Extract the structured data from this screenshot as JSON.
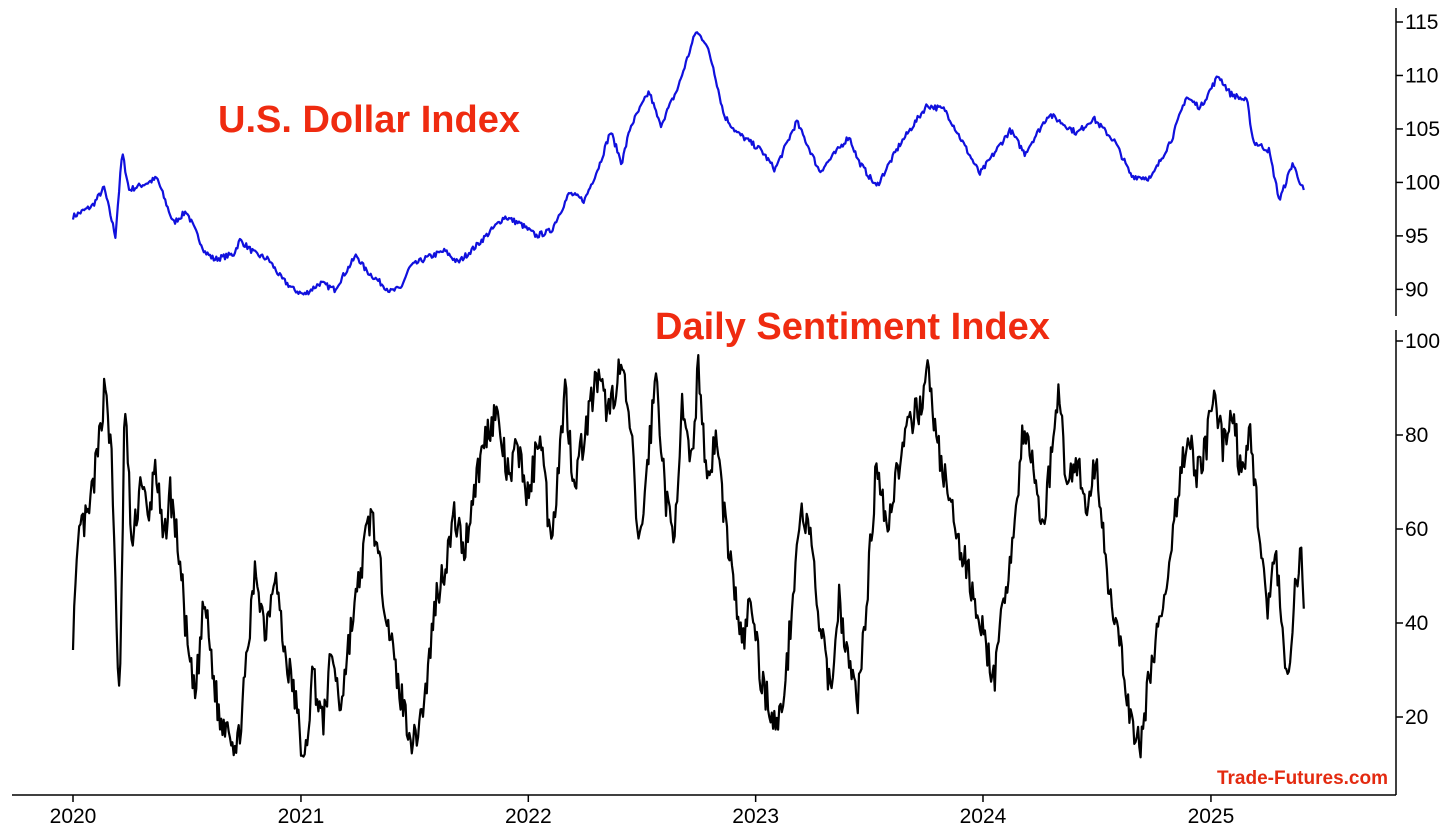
{
  "colors": {
    "title": "#ef2b10",
    "usd_line": "#1010dd",
    "dsi_line": "#000000",
    "watermark": "#e32a10"
  },
  "watermark": "Trade-Futures.com",
  "chart_data": [
    {
      "type": "line",
      "title": "U.S. Dollar Index",
      "xlim": [
        "2020-01-01",
        "2025-08-01"
      ],
      "ylim": [
        88.2,
        115.2
      ],
      "yticks": [
        90,
        95,
        100,
        105,
        110,
        115
      ],
      "y_axis_side": "right",
      "grid": false,
      "series": [
        {
          "color": "#1010dd",
          "points": [
            [
              "2020-01-01",
              96.8
            ],
            [
              "2020-02-01",
              97.8
            ],
            [
              "2020-02-20",
              99.5
            ],
            [
              "2020-03-09",
              95.0
            ],
            [
              "2020-03-20",
              102.8
            ],
            [
              "2020-03-31",
              99.3
            ],
            [
              "2020-05-01",
              100.0
            ],
            [
              "2020-05-15",
              100.4
            ],
            [
              "2020-06-10",
              96.2
            ],
            [
              "2020-07-01",
              97.3
            ],
            [
              "2020-07-31",
              93.5
            ],
            [
              "2020-08-15",
              92.8
            ],
            [
              "2020-09-15",
              93.3
            ],
            [
              "2020-09-25",
              94.6
            ],
            [
              "2020-10-20",
              93.3
            ],
            [
              "2020-11-10",
              92.8
            ],
            [
              "2020-12-01",
              91.0
            ],
            [
              "2020-12-20",
              90.0
            ],
            [
              "2021-01-06",
              89.5
            ],
            [
              "2021-02-01",
              90.6
            ],
            [
              "2021-02-24",
              90.0
            ],
            [
              "2021-03-31",
              93.2
            ],
            [
              "2021-04-15",
              91.8
            ],
            [
              "2021-05-25",
              89.8
            ],
            [
              "2021-06-10",
              90.1
            ],
            [
              "2021-06-25",
              92.1
            ],
            [
              "2021-07-20",
              92.9
            ],
            [
              "2021-08-20",
              93.6
            ],
            [
              "2021-09-10",
              92.5
            ],
            [
              "2021-10-10",
              94.1
            ],
            [
              "2021-11-24",
              96.8
            ],
            [
              "2021-12-20",
              96.1
            ],
            [
              "2022-01-14",
              95.0
            ],
            [
              "2022-02-07",
              95.5
            ],
            [
              "2022-03-08",
              99.0
            ],
            [
              "2022-04-01",
              98.3
            ],
            [
              "2022-04-25",
              101.6
            ],
            [
              "2022-05-13",
              104.8
            ],
            [
              "2022-05-31",
              101.8
            ],
            [
              "2022-06-14",
              105.2
            ],
            [
              "2022-07-14",
              108.5
            ],
            [
              "2022-08-01",
              105.3
            ],
            [
              "2022-08-29",
              108.8
            ],
            [
              "2022-09-27",
              114.1
            ],
            [
              "2022-10-12",
              113.2
            ],
            [
              "2022-10-25",
              110.8
            ],
            [
              "2022-11-11",
              106.3
            ],
            [
              "2022-12-01",
              104.7
            ],
            [
              "2023-01-10",
              103.0
            ],
            [
              "2023-02-01",
              101.2
            ],
            [
              "2023-03-08",
              105.7
            ],
            [
              "2023-04-14",
              101.0
            ],
            [
              "2023-05-31",
              104.3
            ],
            [
              "2023-06-15",
              102.0
            ],
            [
              "2023-07-14",
              99.6
            ],
            [
              "2023-08-20",
              103.5
            ],
            [
              "2023-10-03",
              107.2
            ],
            [
              "2023-11-01",
              106.8
            ],
            [
              "2023-12-27",
              100.8
            ],
            [
              "2024-02-14",
              104.9
            ],
            [
              "2024-03-08",
              102.7
            ],
            [
              "2024-04-16",
              106.4
            ],
            [
              "2024-05-31",
              104.6
            ],
            [
              "2024-06-26",
              106.0
            ],
            [
              "2024-07-31",
              103.8
            ],
            [
              "2024-08-26",
              100.6
            ],
            [
              "2024-09-27",
              100.4
            ],
            [
              "2024-10-31",
              104.2
            ],
            [
              "2024-11-22",
              108.0
            ],
            [
              "2024-12-15",
              107.0
            ],
            [
              "2025-01-13",
              110.0
            ],
            [
              "2025-02-01",
              108.3
            ],
            [
              "2025-02-28",
              107.6
            ],
            [
              "2025-03-10",
              103.8
            ],
            [
              "2025-04-04",
              103.0
            ],
            [
              "2025-04-21",
              98.3
            ],
            [
              "2025-05-12",
              101.8
            ],
            [
              "2025-05-30",
              99.2
            ]
          ]
        }
      ]
    },
    {
      "type": "line",
      "title": "Daily Sentiment Index",
      "xlim": [
        "2020-01-01",
        "2025-08-01"
      ],
      "ylim": [
        5,
        100
      ],
      "yticks": [
        20,
        40,
        60,
        80,
        100
      ],
      "y_axis_side": "right",
      "grid": false,
      "series": [
        {
          "color": "#000000",
          "points": [
            [
              "2020-01-01",
              38
            ],
            [
              "2020-01-12",
              60
            ],
            [
              "2020-01-25",
              62
            ],
            [
              "2020-02-10",
              76
            ],
            [
              "2020-02-22",
              92
            ],
            [
              "2020-03-03",
              74
            ],
            [
              "2020-03-16",
              20
            ],
            [
              "2020-03-24",
              88
            ],
            [
              "2020-04-05",
              55
            ],
            [
              "2020-04-20",
              72
            ],
            [
              "2020-05-01",
              60
            ],
            [
              "2020-05-12",
              75
            ],
            [
              "2020-05-25",
              56
            ],
            [
              "2020-06-05",
              68
            ],
            [
              "2020-06-20",
              54
            ],
            [
              "2020-07-05",
              32
            ],
            [
              "2020-07-15",
              24
            ],
            [
              "2020-07-30",
              45
            ],
            [
              "2020-08-15",
              27
            ],
            [
              "2020-08-25",
              18
            ],
            [
              "2020-09-05",
              20
            ],
            [
              "2020-09-20",
              12
            ],
            [
              "2020-10-05",
              30
            ],
            [
              "2020-10-20",
              52
            ],
            [
              "2020-11-05",
              38
            ],
            [
              "2020-11-20",
              52
            ],
            [
              "2020-12-05",
              34
            ],
            [
              "2020-12-20",
              26
            ],
            [
              "2020-12-31",
              16
            ],
            [
              "2021-01-06",
              8
            ],
            [
              "2021-01-20",
              30
            ],
            [
              "2021-02-05",
              18
            ],
            [
              "2021-02-20",
              34
            ],
            [
              "2021-03-05",
              22
            ],
            [
              "2021-03-20",
              37
            ],
            [
              "2021-04-01",
              46
            ],
            [
              "2021-04-15",
              58
            ],
            [
              "2021-04-25",
              64
            ],
            [
              "2021-05-05",
              53
            ],
            [
              "2021-05-20",
              42
            ],
            [
              "2021-06-01",
              30
            ],
            [
              "2021-06-15",
              22
            ],
            [
              "2021-07-01",
              14
            ],
            [
              "2021-07-20",
              25
            ],
            [
              "2021-08-05",
              45
            ],
            [
              "2021-08-20",
              52
            ],
            [
              "2021-09-05",
              63
            ],
            [
              "2021-09-20",
              55
            ],
            [
              "2021-10-05",
              68
            ],
            [
              "2021-10-25",
              80
            ],
            [
              "2021-11-10",
              85
            ],
            [
              "2021-12-01",
              70
            ],
            [
              "2021-12-15",
              78
            ],
            [
              "2022-01-01",
              66
            ],
            [
              "2022-01-20",
              82
            ],
            [
              "2022-02-05",
              58
            ],
            [
              "2022-02-15",
              68
            ],
            [
              "2022-03-01",
              90
            ],
            [
              "2022-03-15",
              70
            ],
            [
              "2022-04-01",
              80
            ],
            [
              "2022-04-20",
              92
            ],
            [
              "2022-05-10",
              85
            ],
            [
              "2022-05-30",
              95
            ],
            [
              "2022-06-15",
              80
            ],
            [
              "2022-06-28",
              55
            ],
            [
              "2022-07-10",
              72
            ],
            [
              "2022-07-25",
              93
            ],
            [
              "2022-08-10",
              66
            ],
            [
              "2022-08-22",
              58
            ],
            [
              "2022-09-05",
              85
            ],
            [
              "2022-09-20",
              72
            ],
            [
              "2022-10-01",
              96
            ],
            [
              "2022-10-15",
              70
            ],
            [
              "2022-10-30",
              80
            ],
            [
              "2022-11-10",
              65
            ],
            [
              "2022-11-25",
              50
            ],
            [
              "2022-12-10",
              35
            ],
            [
              "2022-12-25",
              45
            ],
            [
              "2023-01-10",
              28
            ],
            [
              "2023-01-25",
              22
            ],
            [
              "2023-02-05",
              17
            ],
            [
              "2023-02-20",
              30
            ],
            [
              "2023-03-05",
              52
            ],
            [
              "2023-03-15",
              64
            ],
            [
              "2023-03-30",
              58
            ],
            [
              "2023-04-15",
              38
            ],
            [
              "2023-05-01",
              26
            ],
            [
              "2023-05-15",
              45
            ],
            [
              "2023-06-01",
              30
            ],
            [
              "2023-06-15",
              24
            ],
            [
              "2023-07-01",
              50
            ],
            [
              "2023-07-15",
              75
            ],
            [
              "2023-08-01",
              60
            ],
            [
              "2023-08-15",
              72
            ],
            [
              "2023-09-01",
              80
            ],
            [
              "2023-09-20",
              86
            ],
            [
              "2023-10-05",
              93
            ],
            [
              "2023-10-20",
              78
            ],
            [
              "2023-11-05",
              68
            ],
            [
              "2023-11-20",
              58
            ],
            [
              "2023-12-05",
              52
            ],
            [
              "2023-12-20",
              45
            ],
            [
              "2024-01-05",
              35
            ],
            [
              "2024-01-20",
              28
            ],
            [
              "2024-02-05",
              46
            ],
            [
              "2024-02-20",
              60
            ],
            [
              "2024-03-05",
              80
            ],
            [
              "2024-03-20",
              75
            ],
            [
              "2024-04-05",
              60
            ],
            [
              "2024-04-20",
              75
            ],
            [
              "2024-04-30",
              90
            ],
            [
              "2024-05-15",
              70
            ],
            [
              "2024-06-01",
              75
            ],
            [
              "2024-06-15",
              63
            ],
            [
              "2024-07-01",
              75
            ],
            [
              "2024-07-15",
              55
            ],
            [
              "2024-08-01",
              38
            ],
            [
              "2024-08-15",
              30
            ],
            [
              "2024-08-25",
              19
            ],
            [
              "2024-09-10",
              13
            ],
            [
              "2024-09-25",
              30
            ],
            [
              "2024-10-10",
              40
            ],
            [
              "2024-10-25",
              48
            ],
            [
              "2024-11-10",
              70
            ],
            [
              "2024-11-25",
              80
            ],
            [
              "2024-12-10",
              72
            ],
            [
              "2024-12-25",
              78
            ],
            [
              "2025-01-05",
              88
            ],
            [
              "2025-01-20",
              78
            ],
            [
              "2025-02-05",
              85
            ],
            [
              "2025-02-20",
              70
            ],
            [
              "2025-03-05",
              80
            ],
            [
              "2025-03-20",
              60
            ],
            [
              "2025-04-01",
              42
            ],
            [
              "2025-04-15",
              55
            ],
            [
              "2025-04-25",
              38
            ],
            [
              "2025-05-05",
              25
            ],
            [
              "2025-05-15",
              45
            ],
            [
              "2025-05-25",
              55
            ],
            [
              "2025-05-30",
              44
            ]
          ]
        }
      ]
    }
  ],
  "x_axis": {
    "ticks": [
      {
        "label": "2020",
        "date": "2020-01-01"
      },
      {
        "label": "2021",
        "date": "2021-01-01"
      },
      {
        "label": "2022",
        "date": "2022-01-01"
      },
      {
        "label": "2023",
        "date": "2023-01-01"
      },
      {
        "label": "2024",
        "date": "2024-01-01"
      },
      {
        "label": "2025",
        "date": "2025-01-01"
      }
    ]
  }
}
